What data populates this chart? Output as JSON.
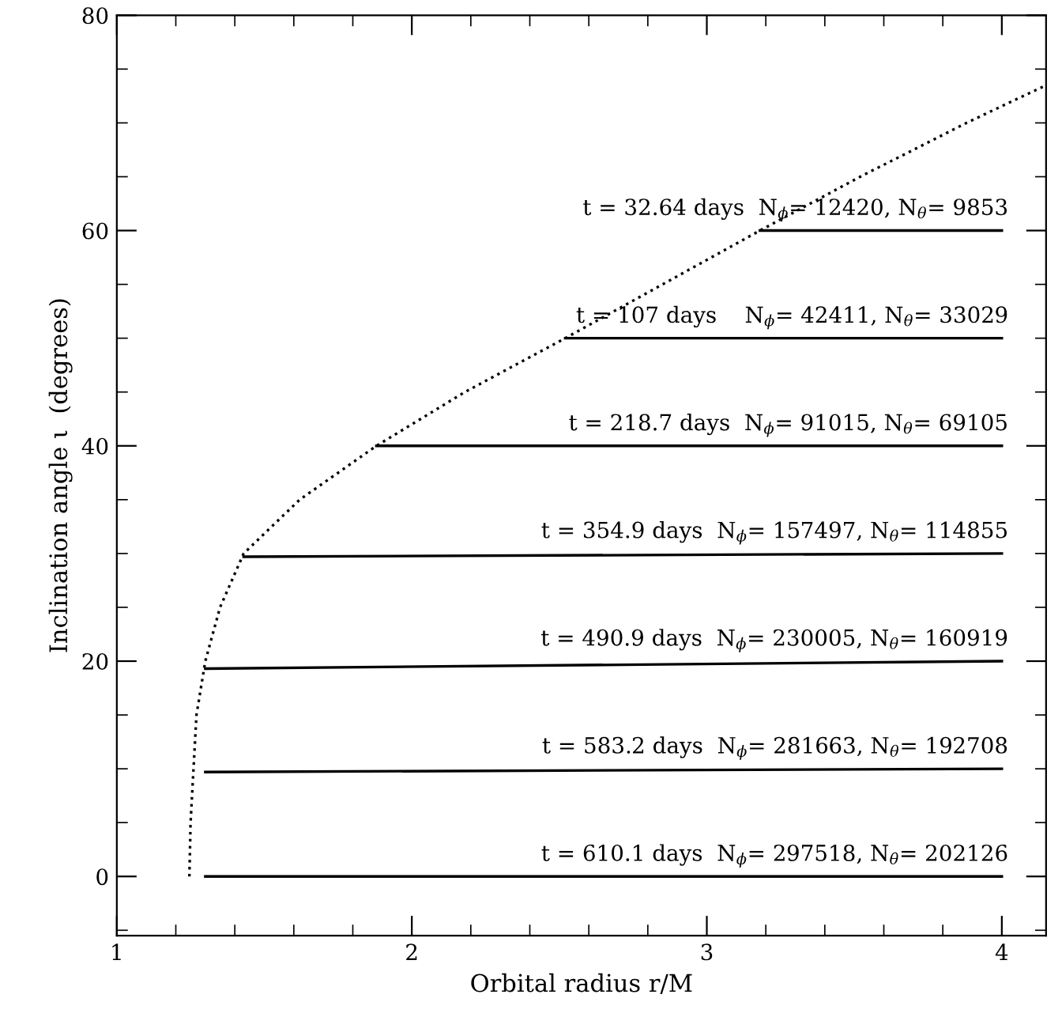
{
  "chart_data": {
    "type": "line",
    "xlabel": "Orbital radius r/M",
    "ylabel": "Inclination angle ι  (degrees)",
    "xlim": [
      1,
      4.15
    ],
    "ylim": [
      -5.5,
      80
    ],
    "xticks": [
      1,
      2,
      3,
      4
    ],
    "yticks": [
      0,
      20,
      40,
      60,
      80
    ],
    "grid": false,
    "legend": false,
    "series": [
      {
        "color": "#000000",
        "line_style": "dotted",
        "x": [
          1.246,
          1.25,
          1.26,
          1.27,
          1.3,
          1.35,
          1.43,
          1.62,
          1.88,
          2.18,
          2.52,
          2.85,
          3.18,
          3.52,
          3.88,
          4.15
        ],
        "values": [
          0,
          5,
          10,
          15,
          20,
          25,
          30,
          35,
          40,
          45,
          50,
          55,
          60,
          65,
          70,
          73.5
        ]
      },
      {
        "name": "t = 32.64 days  N$_{ϕ}$= 12420, N$_{θ}$= 9853",
        "color": "#000000",
        "line_style": "solid",
        "x": [
          3.18,
          4
        ],
        "values": [
          60,
          60
        ]
      },
      {
        "name": "t = 107 days    N$_{ϕ}$= 42411, N$_{θ}$= 33029",
        "color": "#000000",
        "line_style": "solid",
        "x": [
          2.52,
          4
        ],
        "values": [
          50,
          50
        ]
      },
      {
        "name": "t = 218.7 days  N$_{ϕ}$= 91015, N$_{θ}$= 69105",
        "color": "#000000",
        "line_style": "solid",
        "x": [
          1.88,
          4
        ],
        "values": [
          40,
          40
        ]
      },
      {
        "name": "t = 354.9 days  N$_{ϕ}$= 157497, N$_{θ}$= 114855",
        "color": "#000000",
        "line_style": "solid",
        "x": [
          1.43,
          4
        ],
        "values": [
          29.7,
          30
        ]
      },
      {
        "name": "t = 490.9 days  N$_{ϕ}$= 230005, N$_{θ}$= 160919",
        "color": "#000000",
        "line_style": "solid",
        "x": [
          1.3,
          4
        ],
        "values": [
          19.3,
          20
        ]
      },
      {
        "name": "t = 583.2 days  N$_{ϕ}$= 281663, N$_{θ}$= 192708",
        "color": "#000000",
        "line_style": "solid",
        "x": [
          1.3,
          4
        ],
        "values": [
          9.7,
          10
        ]
      },
      {
        "name": "t = 610.1 days  N$_{ϕ}$= 297518, N$_{θ}$= 202126",
        "color": "#000000",
        "line_style": "solid",
        "x": [
          1.3,
          4
        ],
        "values": [
          0,
          0
        ]
      }
    ]
  }
}
